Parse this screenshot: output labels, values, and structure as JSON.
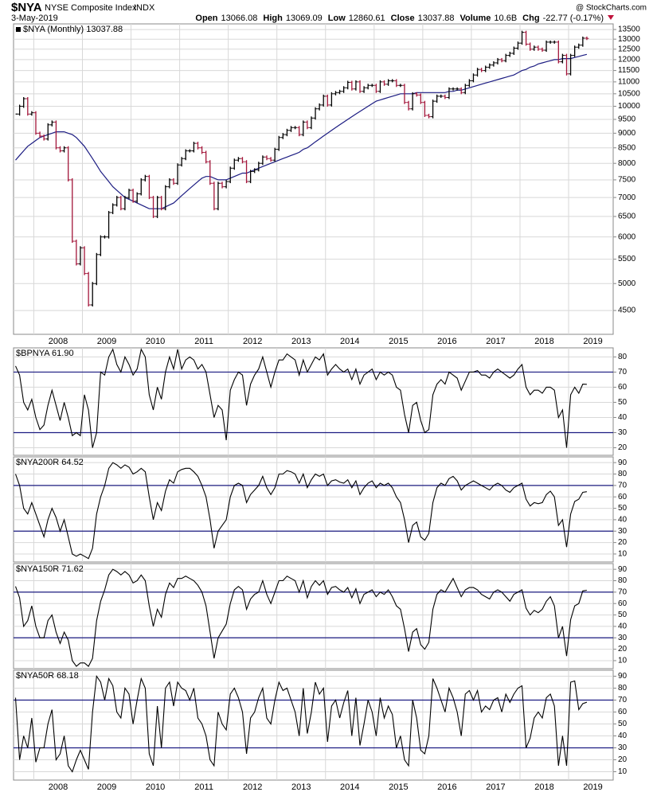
{
  "header": {
    "symbol": "$NYA",
    "name": "NYSE Composite Index",
    "exchange": "INDX",
    "date": "3-May-2019",
    "source": "@ StockCharts.com",
    "quote": [
      {
        "label": "Open",
        "value": "13066.08"
      },
      {
        "label": "High",
        "value": "13069.09"
      },
      {
        "label": "Low",
        "value": "12860.61"
      },
      {
        "label": "Close",
        "value": "13037.88"
      },
      {
        "label": "Volume",
        "value": "10.6B"
      },
      {
        "label": "Chg",
        "value": "-22.77 (-0.17%)"
      }
    ]
  },
  "chart_data": [
    {
      "type": "ohlc",
      "legend": "$NYA (Monthly) 13037.88",
      "log": true,
      "grid": true,
      "categories": [
        null,
        null,
        null,
        null,
        null,
        "2008",
        null,
        null,
        null,
        null,
        null,
        null,
        null,
        null,
        null,
        null,
        null,
        "2009",
        null,
        null,
        null,
        null,
        null,
        null,
        null,
        null,
        null,
        null,
        null,
        "2010",
        null,
        null,
        null,
        null,
        null,
        null,
        null,
        null,
        null,
        null,
        null,
        "2011",
        null,
        null,
        null,
        null,
        null,
        null,
        null,
        null,
        null,
        null,
        null,
        "2012",
        null,
        null,
        null,
        null,
        null,
        null,
        null,
        null,
        null,
        null,
        null,
        "2013",
        null,
        null,
        null,
        null,
        null,
        null,
        null,
        null,
        null,
        null,
        null,
        "2014",
        null,
        null,
        null,
        null,
        null,
        null,
        null,
        null,
        null,
        null,
        null,
        "2015",
        null,
        null,
        null,
        null,
        null,
        null,
        null,
        null,
        null,
        null,
        null,
        "2016",
        null,
        null,
        null,
        null,
        null,
        null,
        null,
        null,
        null,
        null,
        null,
        "2017",
        null,
        null,
        null,
        null,
        null,
        null,
        null,
        null,
        null,
        null,
        null,
        "2018",
        null,
        null,
        null,
        null,
        null,
        null,
        null,
        null,
        null,
        null,
        null,
        "2019",
        null,
        null,
        null,
        null
      ],
      "series": [
        {
          "name": "$NYA",
          "color": "#000000",
          "down_color": "#a3163a",
          "values": [
            9700,
            10000,
            10300,
            9700,
            9750,
            9000,
            8900,
            8800,
            9300,
            9400,
            8500,
            8400,
            8500,
            7500,
            5900,
            5400,
            5750,
            5200,
            4600,
            5000,
            5600,
            6000,
            6000,
            6600,
            6800,
            7000,
            6700,
            7000,
            7200,
            6900,
            7100,
            7500,
            7600,
            7000,
            6500,
            7000,
            6700,
            7300,
            7500,
            7400,
            7950,
            8150,
            8400,
            8400,
            8650,
            8500,
            8350,
            8050,
            7400,
            6700,
            7400,
            7300,
            7450,
            7850,
            8100,
            8150,
            8050,
            7450,
            7750,
            7800,
            8000,
            8200,
            8150,
            8100,
            8450,
            8850,
            8950,
            9100,
            9200,
            9200,
            8950,
            9400,
            9200,
            9550,
            9900,
            10050,
            10400,
            10050,
            10500,
            10550,
            10600,
            10750,
            10980,
            10700,
            11000,
            10600,
            10750,
            10850,
            10850,
            10600,
            11000,
            10900,
            11050,
            11050,
            10850,
            10850,
            10150,
            9900,
            10500,
            10450,
            10150,
            9650,
            9600,
            10200,
            10400,
            10400,
            10350,
            10700,
            10700,
            10700,
            10550,
            10850,
            11050,
            11300,
            11550,
            11500,
            11650,
            11750,
            11850,
            12000,
            11950,
            12200,
            12300,
            12550,
            12800,
            13350,
            12750,
            12500,
            12600,
            12500,
            12450,
            12850,
            12850,
            12850,
            11900,
            12200,
            11350,
            12200,
            12600,
            12700,
            13050,
            13037.88
          ]
        },
        {
          "color": "#1c1c82",
          "values": [
            8100,
            8250,
            8400,
            8550,
            8650,
            8750,
            8850,
            8900,
            8950,
            9000,
            9050,
            9050,
            9050,
            9000,
            8950,
            8850,
            8700,
            8550,
            8350,
            8150,
            7950,
            7750,
            7600,
            7450,
            7300,
            7200,
            7100,
            7000,
            6950,
            6900,
            6850,
            6800,
            6750,
            6700,
            6700,
            6700,
            6700,
            6750,
            6800,
            6850,
            6950,
            7050,
            7150,
            7250,
            7350,
            7450,
            7550,
            7600,
            7600,
            7550,
            7500,
            7500,
            7500,
            7550,
            7600,
            7650,
            7700,
            7700,
            7750,
            7800,
            7850,
            7900,
            7950,
            8000,
            8050,
            8100,
            8150,
            8200,
            8250,
            8300,
            8350,
            8450,
            8500,
            8600,
            8700,
            8800,
            8900,
            9000,
            9100,
            9200,
            9300,
            9400,
            9500,
            9600,
            9700,
            9800,
            9900,
            10000,
            10100,
            10200,
            10250,
            10300,
            10350,
            10400,
            10450,
            10500,
            10500,
            10500,
            10500,
            10550,
            10550,
            10550,
            10550,
            10550,
            10550,
            10550,
            10550,
            10600,
            10600,
            10650,
            10650,
            10700,
            10750,
            10800,
            10850,
            10900,
            10950,
            11000,
            11050,
            11100,
            11150,
            11200,
            11250,
            11300,
            11400,
            11500,
            11550,
            11650,
            11700,
            11800,
            11850,
            11900,
            11950,
            12000,
            12000,
            12050,
            12050,
            12050,
            12100,
            12150,
            12200,
            12250
          ]
        }
      ],
      "ylim": [
        4100,
        13800
      ],
      "yticks": [
        4500,
        5000,
        5500,
        6000,
        6500,
        7000,
        7500,
        8000,
        8500,
        9000,
        9500,
        10000,
        10500,
        11000,
        11500,
        12000,
        12500,
        13000,
        13500
      ]
    },
    {
      "type": "line",
      "legend": "$BPNYA 61.90",
      "color": "#000000",
      "hlines": [
        30,
        70
      ],
      "hline_color": "#1c1c82",
      "grid": true,
      "ylim": [
        15,
        86
      ],
      "yticks": [
        20,
        30,
        40,
        50,
        60,
        70,
        80
      ],
      "values": [
        74,
        68,
        50,
        45,
        52,
        40,
        32,
        35,
        48,
        58,
        48,
        38,
        50,
        40,
        28,
        30,
        28,
        55,
        45,
        20,
        30,
        70,
        68,
        80,
        85,
        75,
        70,
        80,
        75,
        68,
        72,
        85,
        80,
        55,
        45,
        60,
        52,
        70,
        80,
        72,
        85,
        72,
        78,
        80,
        78,
        72,
        75,
        70,
        55,
        40,
        48,
        45,
        25,
        58,
        65,
        70,
        68,
        48,
        62,
        68,
        72,
        80,
        70,
        60,
        70,
        78,
        78,
        82,
        80,
        78,
        68,
        78,
        70,
        75,
        80,
        78,
        82,
        68,
        72,
        75,
        72,
        70,
        72,
        65,
        72,
        62,
        68,
        70,
        72,
        65,
        70,
        68,
        70,
        68,
        60,
        58,
        42,
        30,
        48,
        50,
        38,
        30,
        32,
        55,
        62,
        65,
        62,
        70,
        68,
        66,
        58,
        64,
        70,
        70,
        71,
        68,
        68,
        66,
        70,
        72,
        70,
        68,
        66,
        68,
        72,
        75,
        60,
        55,
        58,
        58,
        56,
        60,
        60,
        58,
        40,
        45,
        20,
        55,
        60,
        56,
        62,
        61.9
      ]
    },
    {
      "type": "line",
      "legend": "$NYA200R 64.52",
      "color": "#000000",
      "hlines": [
        30,
        70
      ],
      "hline_color": "#1c1c82",
      "grid": true,
      "ylim": [
        3,
        95
      ],
      "yticks": [
        10,
        20,
        30,
        40,
        50,
        60,
        70,
        80,
        90
      ],
      "values": [
        80,
        70,
        50,
        45,
        55,
        45,
        35,
        25,
        40,
        50,
        42,
        30,
        40,
        25,
        10,
        8,
        10,
        8,
        6,
        15,
        45,
        60,
        70,
        85,
        90,
        88,
        85,
        88,
        86,
        80,
        82,
        85,
        82,
        60,
        40,
        55,
        48,
        65,
        75,
        72,
        82,
        84,
        85,
        85,
        82,
        78,
        70,
        60,
        40,
        15,
        30,
        35,
        40,
        60,
        70,
        72,
        70,
        55,
        62,
        66,
        70,
        78,
        68,
        62,
        68,
        80,
        80,
        83,
        82,
        80,
        72,
        80,
        68,
        75,
        80,
        78,
        80,
        70,
        74,
        75,
        73,
        72,
        75,
        68,
        74,
        62,
        68,
        72,
        74,
        68,
        72,
        70,
        72,
        68,
        60,
        55,
        40,
        20,
        35,
        38,
        25,
        22,
        28,
        55,
        68,
        72,
        70,
        76,
        78,
        74,
        66,
        70,
        72,
        74,
        72,
        70,
        68,
        66,
        70,
        72,
        70,
        66,
        64,
        68,
        70,
        72,
        58,
        52,
        55,
        54,
        55,
        62,
        65,
        60,
        35,
        40,
        16,
        45,
        56,
        58,
        64,
        64.52
      ]
    },
    {
      "type": "line",
      "legend": "$NYA150R 71.62",
      "color": "#000000",
      "hlines": [
        30,
        70
      ],
      "hline_color": "#1c1c82",
      "grid": true,
      "ylim": [
        3,
        95
      ],
      "yticks": [
        10,
        20,
        30,
        40,
        50,
        60,
        70,
        80,
        90
      ],
      "values": [
        75,
        65,
        40,
        45,
        58,
        40,
        30,
        30,
        45,
        50,
        35,
        25,
        35,
        28,
        10,
        5,
        8,
        8,
        5,
        12,
        45,
        62,
        72,
        85,
        90,
        88,
        85,
        88,
        85,
        78,
        80,
        85,
        80,
        58,
        40,
        55,
        48,
        68,
        78,
        74,
        82,
        82,
        84,
        82,
        80,
        76,
        70,
        58,
        35,
        12,
        30,
        36,
        42,
        60,
        72,
        75,
        72,
        55,
        64,
        68,
        70,
        80,
        68,
        60,
        70,
        80,
        80,
        84,
        82,
        80,
        70,
        80,
        65,
        75,
        80,
        76,
        80,
        68,
        74,
        75,
        72,
        70,
        74,
        65,
        73,
        60,
        68,
        70,
        72,
        66,
        70,
        68,
        72,
        66,
        58,
        55,
        38,
        18,
        35,
        38,
        24,
        20,
        26,
        55,
        68,
        72,
        70,
        76,
        82,
        74,
        66,
        72,
        74,
        74,
        72,
        68,
        66,
        64,
        70,
        72,
        70,
        66,
        62,
        68,
        70,
        72,
        56,
        50,
        54,
        52,
        55,
        62,
        66,
        58,
        30,
        40,
        14,
        46,
        58,
        60,
        71,
        71.62
      ]
    },
    {
      "type": "line",
      "legend": "$NYA50R 68.18",
      "color": "#000000",
      "hlines": [
        30,
        70
      ],
      "hline_color": "#1c1c82",
      "grid": true,
      "xlabels": true,
      "ylim": [
        3,
        95
      ],
      "yticks": [
        10,
        20,
        30,
        40,
        50,
        60,
        70,
        80,
        90
      ],
      "values": [
        72,
        20,
        40,
        30,
        55,
        18,
        30,
        30,
        50,
        62,
        20,
        25,
        40,
        15,
        10,
        20,
        28,
        20,
        12,
        60,
        90,
        85,
        70,
        88,
        82,
        60,
        55,
        80,
        75,
        50,
        70,
        88,
        80,
        25,
        15,
        65,
        30,
        80,
        85,
        65,
        85,
        80,
        78,
        70,
        80,
        55,
        50,
        40,
        20,
        15,
        60,
        50,
        45,
        75,
        80,
        72,
        60,
        25,
        55,
        60,
        72,
        80,
        55,
        50,
        70,
        85,
        78,
        80,
        70,
        60,
        40,
        80,
        42,
        60,
        85,
        75,
        80,
        35,
        65,
        70,
        55,
        68,
        78,
        40,
        72,
        32,
        50,
        70,
        60,
        40,
        72,
        55,
        65,
        58,
        30,
        40,
        20,
        15,
        70,
        55,
        28,
        25,
        40,
        88,
        80,
        70,
        60,
        80,
        72,
        60,
        40,
        75,
        78,
        70,
        78,
        60,
        65,
        62,
        70,
        72,
        60,
        75,
        68,
        75,
        80,
        82,
        30,
        38,
        55,
        60,
        55,
        72,
        75,
        65,
        15,
        40,
        15,
        85,
        86,
        62,
        67,
        68.18
      ]
    }
  ]
}
